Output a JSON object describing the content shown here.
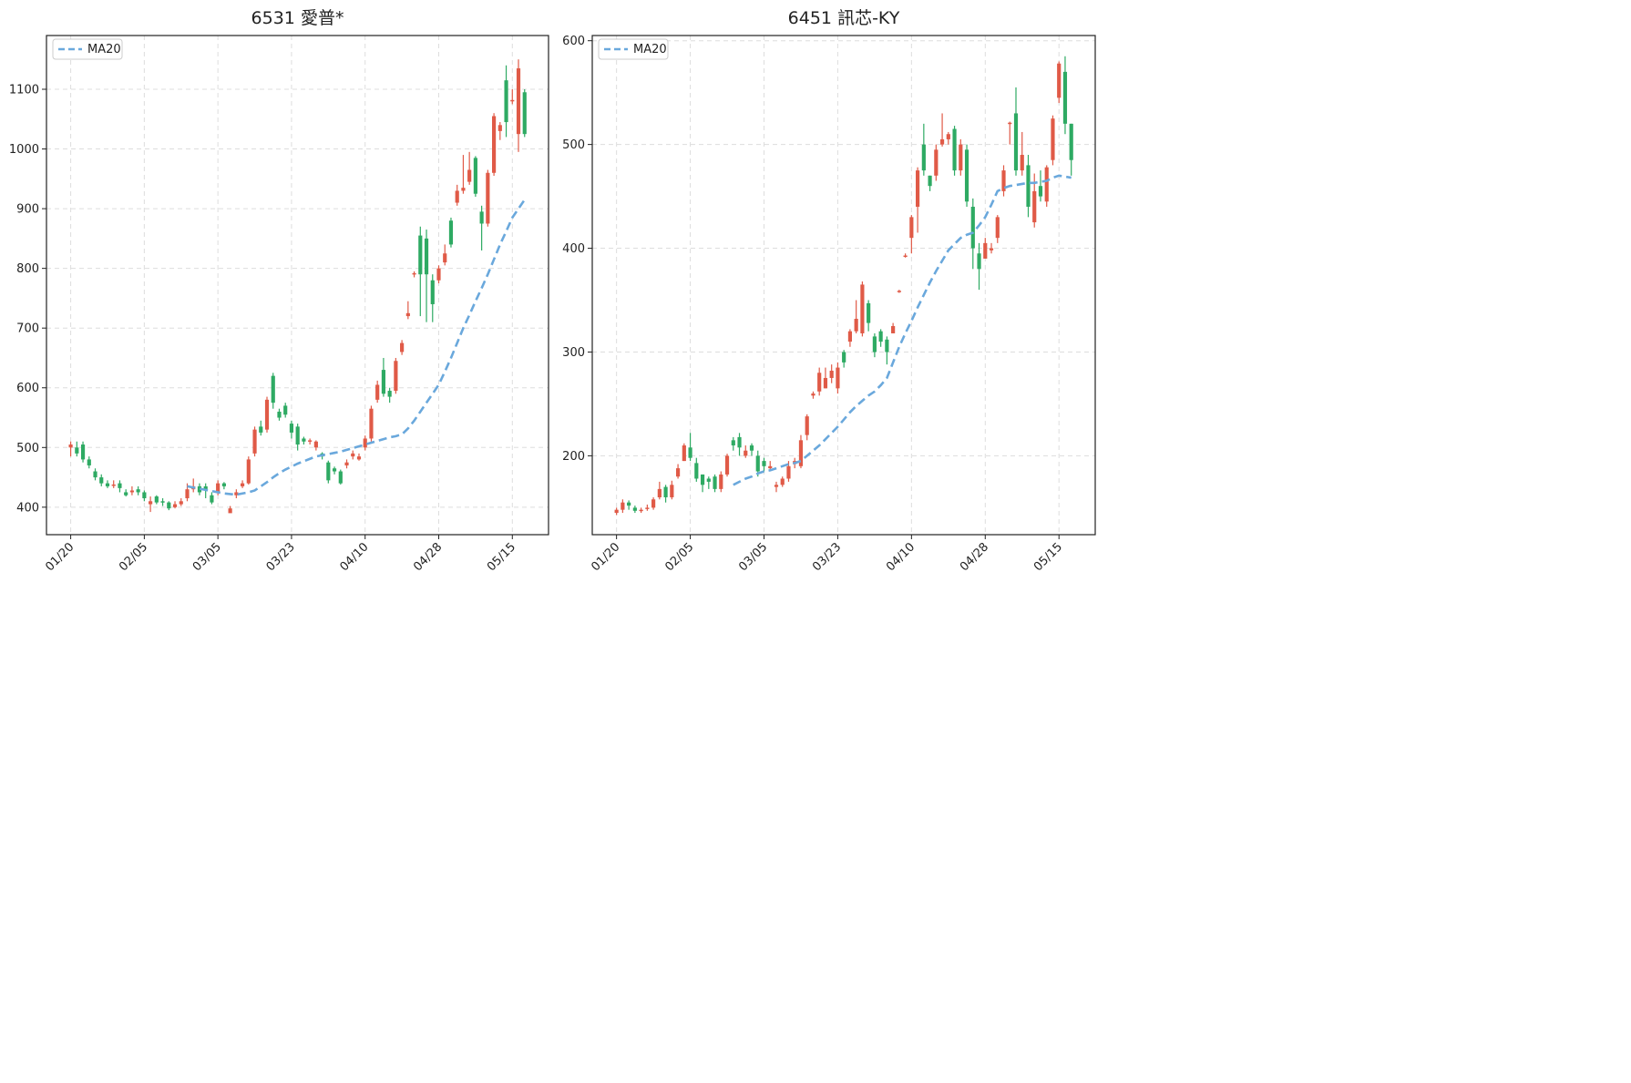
{
  "chart_data": [
    {
      "type": "candlestick",
      "title": "6531 愛普*",
      "categories": [
        "01/20",
        null,
        null,
        null,
        null,
        null,
        null,
        null,
        null,
        null,
        null,
        null,
        "02/05",
        null,
        null,
        null,
        null,
        null,
        null,
        null,
        null,
        null,
        null,
        null,
        "03/05",
        null,
        null,
        null,
        null,
        null,
        null,
        null,
        null,
        null,
        null,
        null,
        "03/23",
        null,
        null,
        null,
        null,
        null,
        null,
        null,
        null,
        null,
        null,
        null,
        "04/10",
        null,
        null,
        null,
        null,
        null,
        null,
        null,
        null,
        null,
        null,
        null,
        "04/28",
        null,
        null,
        null,
        null,
        null,
        null,
        null,
        null,
        null,
        null,
        null,
        "05/15",
        null,
        null
      ],
      "open": [
        500,
        500,
        505,
        480,
        460,
        450,
        440,
        438,
        440,
        425,
        425,
        430,
        425,
        405,
        418,
        410,
        408,
        400,
        405,
        415,
        430,
        435,
        435,
        420,
        425,
        440,
        390,
        420,
        435,
        440,
        490,
        535,
        530,
        620,
        560,
        570,
        540,
        535,
        515,
        510,
        500,
        490,
        475,
        465,
        460,
        470,
        485,
        480,
        500,
        515,
        580,
        630,
        595,
        595,
        660,
        720,
        790,
        855,
        850,
        780,
        780,
        810,
        880,
        910,
        930,
        945,
        985,
        895,
        875,
        960,
        1030,
        1115,
        1080,
        1025,
        1095
      ],
      "high": [
        510,
        510,
        510,
        485,
        465,
        455,
        445,
        445,
        445,
        430,
        435,
        435,
        428,
        418,
        420,
        415,
        410,
        410,
        415,
        440,
        448,
        440,
        440,
        425,
        445,
        442,
        402,
        430,
        445,
        485,
        535,
        545,
        585,
        625,
        565,
        575,
        545,
        540,
        518,
        515,
        512,
        492,
        478,
        468,
        463,
        480,
        495,
        490,
        520,
        570,
        612,
        650,
        600,
        650,
        680,
        745,
        795,
        870,
        865,
        790,
        805,
        840,
        885,
        940,
        990,
        995,
        988,
        905,
        965,
        1060,
        1045,
        1140,
        1100,
        1150,
        1100
      ],
      "low": [
        485,
        485,
        475,
        465,
        445,
        435,
        432,
        432,
        425,
        418,
        420,
        420,
        410,
        392,
        405,
        402,
        395,
        398,
        402,
        410,
        425,
        420,
        415,
        405,
        420,
        430,
        392,
        415,
        432,
        438,
        485,
        520,
        525,
        565,
        545,
        550,
        515,
        495,
        505,
        505,
        495,
        480,
        440,
        455,
        438,
        465,
        480,
        478,
        495,
        510,
        575,
        585,
        575,
        590,
        655,
        715,
        785,
        720,
        710,
        710,
        775,
        805,
        835,
        905,
        925,
        940,
        920,
        830,
        870,
        955,
        1015,
        1020,
        1075,
        995,
        1020
      ],
      "close": [
        505,
        490,
        480,
        470,
        450,
        440,
        435,
        438,
        432,
        420,
        428,
        425,
        415,
        410,
        408,
        408,
        398,
        405,
        410,
        430,
        435,
        425,
        428,
        408,
        440,
        435,
        398,
        425,
        440,
        480,
        530,
        525,
        580,
        575,
        550,
        555,
        525,
        505,
        510,
        512,
        510,
        485,
        445,
        460,
        440,
        475,
        490,
        485,
        515,
        565,
        605,
        590,
        585,
        645,
        675,
        725,
        792,
        790,
        790,
        740,
        800,
        825,
        840,
        930,
        935,
        965,
        925,
        875,
        960,
        1055,
        1040,
        1045,
        1082,
        1135,
        1025
      ],
      "up_color": "#e05a47",
      "down_color": "#2eaa63",
      "series": [
        {
          "name": "MA20",
          "color": "#6aa8dc",
          "values": [
            null,
            null,
            null,
            null,
            null,
            null,
            null,
            null,
            null,
            null,
            null,
            null,
            null,
            null,
            null,
            null,
            null,
            null,
            null,
            435,
            433,
            431,
            429,
            427,
            425,
            423,
            422,
            421,
            423,
            425,
            428,
            435,
            442,
            450,
            457,
            463,
            468,
            473,
            477,
            481,
            485,
            487,
            489,
            491,
            493,
            496,
            499,
            502,
            505,
            508,
            511,
            514,
            517,
            519,
            522,
            532,
            545,
            560,
            575,
            590,
            605,
            627,
            650,
            675,
            700,
            722,
            745,
            767,
            790,
            815,
            840,
            862,
            885,
            900,
            915
          ]
        }
      ],
      "ylim": [
        354,
        1190
      ],
      "yticks": [
        400,
        500,
        600,
        700,
        800,
        900,
        1000,
        1100
      ],
      "grid": true,
      "legend": "upper left"
    },
    {
      "type": "candlestick",
      "title": "6451 訊芯-KY",
      "categories": [
        "01/20",
        null,
        null,
        null,
        null,
        null,
        null,
        null,
        null,
        null,
        null,
        null,
        "02/05",
        null,
        null,
        null,
        null,
        null,
        null,
        null,
        null,
        null,
        null,
        null,
        "03/05",
        null,
        null,
        null,
        null,
        null,
        null,
        null,
        null,
        null,
        null,
        null,
        "03/23",
        null,
        null,
        null,
        null,
        null,
        null,
        null,
        null,
        null,
        null,
        null,
        "04/10",
        null,
        null,
        null,
        null,
        null,
        null,
        null,
        null,
        null,
        null,
        null,
        "04/28",
        null,
        null,
        null,
        null,
        null,
        null,
        null,
        null,
        null,
        null,
        null,
        "05/15",
        null,
        null
      ],
      "open": [
        145,
        148,
        155,
        150,
        147,
        150,
        150,
        160,
        170,
        160,
        180,
        195,
        208,
        193,
        182,
        178,
        180,
        168,
        182,
        215,
        218,
        200,
        210,
        200,
        195,
        188,
        170,
        172,
        178,
        192,
        190,
        220,
        258,
        262,
        265,
        275,
        265,
        300,
        310,
        320,
        318,
        347,
        315,
        320,
        312,
        318,
        358,
        392,
        410,
        440,
        500,
        470,
        470,
        500,
        505,
        515,
        475,
        495,
        440,
        395,
        390,
        398,
        410,
        455,
        520,
        530,
        475,
        480,
        425,
        460,
        445,
        485,
        545,
        570,
        520
      ],
      "high": [
        150,
        158,
        157,
        152,
        150,
        153,
        160,
        175,
        172,
        176,
        192,
        212,
        222,
        198,
        182,
        180,
        182,
        185,
        202,
        218,
        222,
        210,
        212,
        205,
        198,
        195,
        175,
        180,
        195,
        198,
        220,
        240,
        262,
        285,
        285,
        288,
        290,
        302,
        322,
        350,
        368,
        350,
        318,
        322,
        315,
        328,
        360,
        395,
        432,
        478,
        520,
        470,
        500,
        530,
        512,
        518,
        505,
        500,
        448,
        405,
        410,
        405,
        432,
        480,
        522,
        555,
        512,
        490,
        472,
        475,
        480,
        528,
        580,
        585,
        520
      ],
      "low": [
        143,
        145,
        148,
        145,
        145,
        147,
        148,
        158,
        155,
        158,
        178,
        195,
        195,
        175,
        165,
        168,
        165,
        165,
        180,
        205,
        200,
        198,
        200,
        180,
        185,
        185,
        165,
        170,
        175,
        188,
        188,
        215,
        255,
        258,
        265,
        270,
        260,
        285,
        305,
        318,
        315,
        320,
        295,
        305,
        288,
        318,
        357,
        391,
        395,
        415,
        470,
        455,
        465,
        498,
        500,
        470,
        470,
        440,
        380,
        360,
        390,
        395,
        405,
        450,
        500,
        470,
        470,
        430,
        420,
        445,
        440,
        480,
        540,
        510,
        470
      ],
      "close": [
        148,
        155,
        152,
        147,
        148,
        150,
        158,
        168,
        160,
        172,
        188,
        210,
        198,
        178,
        172,
        175,
        168,
        182,
        200,
        210,
        208,
        205,
        205,
        185,
        190,
        190,
        172,
        178,
        190,
        195,
        215,
        238,
        260,
        280,
        275,
        282,
        285,
        290,
        320,
        332,
        365,
        328,
        300,
        310,
        300,
        325,
        359,
        393,
        430,
        475,
        475,
        460,
        495,
        505,
        510,
        475,
        500,
        445,
        400,
        380,
        405,
        400,
        430,
        475,
        521,
        475,
        490,
        440,
        455,
        450,
        478,
        525,
        578,
        520,
        485
      ],
      "up_color": "#e05a47",
      "down_color": "#2eaa63",
      "series": [
        {
          "name": "MA20",
          "color": "#6aa8dc",
          "values": [
            null,
            null,
            null,
            null,
            null,
            null,
            null,
            null,
            null,
            null,
            null,
            null,
            null,
            null,
            null,
            null,
            null,
            null,
            null,
            172,
            175,
            178,
            180,
            183,
            185,
            186,
            188,
            190,
            192,
            193,
            195,
            200,
            205,
            210,
            216,
            222,
            228,
            235,
            242,
            248,
            253,
            258,
            262,
            268,
            275,
            290,
            305,
            318,
            330,
            343,
            355,
            367,
            378,
            388,
            398,
            404,
            410,
            413,
            415,
            422,
            430,
            442,
            455,
            458,
            460,
            461,
            462,
            463,
            463,
            464,
            465,
            468,
            470,
            469,
            468
          ]
        }
      ],
      "ylim": [
        124,
        605
      ],
      "yticks": [
        200,
        300,
        400,
        500,
        600
      ],
      "grid": true,
      "legend": "upper left"
    }
  ]
}
